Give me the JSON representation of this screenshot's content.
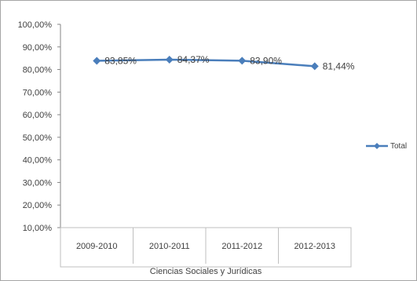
{
  "chart_data": {
    "type": "line",
    "categories": [
      "2009-2010",
      "2010-2011",
      "2011-2012",
      "2012-2013"
    ],
    "group_label": "Ciencias Sociales y Jurídicas",
    "series": [
      {
        "name": "Total",
        "values": [
          83.85,
          84.37,
          83.9,
          81.44
        ],
        "labels": [
          "83,85%",
          "84,37%",
          "83,90%",
          "81,44%"
        ],
        "color": "#4a7ebb"
      }
    ],
    "y_ticks": [
      "10,00%",
      "20,00%",
      "30,00%",
      "40,00%",
      "50,00%",
      "60,00%",
      "70,00%",
      "80,00%",
      "90,00%",
      "100,00%"
    ],
    "ylim": [
      10,
      100
    ],
    "grid": false,
    "legend_position": "right"
  }
}
